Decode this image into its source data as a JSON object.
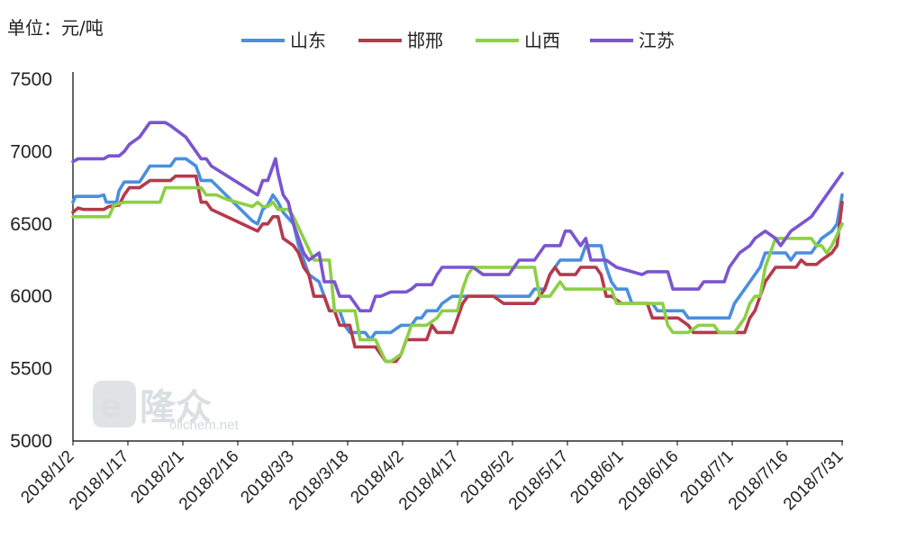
{
  "chart_data": {
    "type": "line",
    "unit_label": "单位：元/吨",
    "ylim": [
      5000,
      7500
    ],
    "yticks": [
      5000,
      5500,
      6000,
      6500,
      7000,
      7500
    ],
    "start_date": "2018-01-02",
    "end_date": "2018-07-31",
    "xticks": [
      "2018/1/2",
      "2018/1/17",
      "2018/2/1",
      "2018/2/16",
      "2018/3/3",
      "2018/3/18",
      "2018/4/2",
      "2018/4/17",
      "2018/5/2",
      "2018/5/17",
      "2018/6/1",
      "2018/6/16",
      "2018/7/1",
      "2018/7/16",
      "2018/7/31"
    ],
    "legend_position": "top",
    "series": [
      {
        "name": "山东",
        "color": "#4a8fde",
        "points": [
          [
            0,
            6650
          ],
          [
            1,
            6690
          ],
          [
            10,
            6690
          ],
          [
            12,
            6700
          ],
          [
            13,
            6650
          ],
          [
            17,
            6650
          ],
          [
            18,
            6730
          ],
          [
            20,
            6790
          ],
          [
            26,
            6790
          ],
          [
            30,
            6900
          ],
          [
            38,
            6900
          ],
          [
            40,
            6950
          ],
          [
            44,
            6950
          ],
          [
            48,
            6900
          ],
          [
            50,
            6800
          ],
          [
            54,
            6800
          ],
          [
            70,
            6520
          ],
          [
            72,
            6500
          ],
          [
            74,
            6600
          ],
          [
            76,
            6630
          ],
          [
            78,
            6700
          ],
          [
            80,
            6650
          ],
          [
            82,
            6580
          ],
          [
            86,
            6500
          ],
          [
            88,
            6350
          ],
          [
            90,
            6250
          ],
          [
            92,
            6150
          ],
          [
            96,
            6100
          ],
          [
            98,
            6000
          ],
          [
            100,
            5900
          ],
          [
            104,
            5900
          ],
          [
            106,
            5800
          ],
          [
            108,
            5750
          ],
          [
            114,
            5750
          ],
          [
            116,
            5700
          ],
          [
            118,
            5750
          ],
          [
            124,
            5750
          ],
          [
            128,
            5800
          ],
          [
            132,
            5800
          ],
          [
            134,
            5850
          ],
          [
            136,
            5850
          ],
          [
            138,
            5900
          ],
          [
            142,
            5900
          ],
          [
            144,
            5950
          ],
          [
            148,
            6000
          ],
          [
            178,
            6000
          ],
          [
            180,
            6050
          ],
          [
            184,
            6050
          ],
          [
            186,
            6150
          ],
          [
            188,
            6200
          ],
          [
            190,
            6250
          ],
          [
            198,
            6250
          ],
          [
            200,
            6350
          ],
          [
            206,
            6350
          ],
          [
            208,
            6200
          ],
          [
            210,
            6100
          ],
          [
            212,
            6050
          ],
          [
            216,
            6050
          ],
          [
            218,
            5950
          ],
          [
            226,
            5950
          ],
          [
            228,
            5900
          ],
          [
            238,
            5900
          ],
          [
            240,
            5850
          ],
          [
            254,
            5850
          ],
          [
            256,
            5850
          ],
          [
            258,
            5950
          ],
          [
            260,
            6000
          ],
          [
            262,
            6050
          ],
          [
            264,
            6100
          ],
          [
            266,
            6150
          ],
          [
            268,
            6200
          ],
          [
            270,
            6300
          ],
          [
            278,
            6300
          ],
          [
            280,
            6250
          ],
          [
            282,
            6300
          ],
          [
            288,
            6300
          ],
          [
            290,
            6350
          ],
          [
            292,
            6400
          ],
          [
            296,
            6450
          ],
          [
            298,
            6500
          ],
          [
            299,
            6600
          ],
          [
            300,
            6700
          ]
        ]
      },
      {
        "name": "邯邢",
        "color": "#b53a4c",
        "points": [
          [
            0,
            6580
          ],
          [
            2,
            6610
          ],
          [
            4,
            6600
          ],
          [
            12,
            6600
          ],
          [
            14,
            6620
          ],
          [
            18,
            6630
          ],
          [
            20,
            6700
          ],
          [
            22,
            6750
          ],
          [
            26,
            6750
          ],
          [
            30,
            6800
          ],
          [
            38,
            6800
          ],
          [
            40,
            6830
          ],
          [
            48,
            6830
          ],
          [
            50,
            6650
          ],
          [
            52,
            6650
          ],
          [
            54,
            6600
          ],
          [
            72,
            6450
          ],
          [
            74,
            6500
          ],
          [
            76,
            6500
          ],
          [
            78,
            6550
          ],
          [
            80,
            6550
          ],
          [
            82,
            6400
          ],
          [
            86,
            6350
          ],
          [
            88,
            6300
          ],
          [
            90,
            6200
          ],
          [
            92,
            6150
          ],
          [
            94,
            6000
          ],
          [
            98,
            6000
          ],
          [
            100,
            5900
          ],
          [
            102,
            5900
          ],
          [
            104,
            5800
          ],
          [
            108,
            5800
          ],
          [
            110,
            5650
          ],
          [
            118,
            5650
          ],
          [
            120,
            5600
          ],
          [
            122,
            5550
          ],
          [
            126,
            5550
          ],
          [
            128,
            5600
          ],
          [
            130,
            5700
          ],
          [
            138,
            5700
          ],
          [
            140,
            5800
          ],
          [
            142,
            5750
          ],
          [
            148,
            5750
          ],
          [
            150,
            5850
          ],
          [
            152,
            5950
          ],
          [
            154,
            6000
          ],
          [
            164,
            6000
          ],
          [
            168,
            5950
          ],
          [
            180,
            5950
          ],
          [
            182,
            6000
          ],
          [
            184,
            6050
          ],
          [
            186,
            6150
          ],
          [
            188,
            6200
          ],
          [
            190,
            6150
          ],
          [
            196,
            6150
          ],
          [
            198,
            6200
          ],
          [
            204,
            6200
          ],
          [
            206,
            6150
          ],
          [
            208,
            6000
          ],
          [
            210,
            6000
          ],
          [
            214,
            5950
          ],
          [
            224,
            5950
          ],
          [
            226,
            5850
          ],
          [
            232,
            5850
          ],
          [
            236,
            5850
          ],
          [
            240,
            5800
          ],
          [
            242,
            5750
          ],
          [
            262,
            5750
          ],
          [
            264,
            5850
          ],
          [
            266,
            5900
          ],
          [
            268,
            6000
          ],
          [
            270,
            6100
          ],
          [
            272,
            6150
          ],
          [
            274,
            6200
          ],
          [
            282,
            6200
          ],
          [
            284,
            6250
          ],
          [
            286,
            6220
          ],
          [
            290,
            6220
          ],
          [
            292,
            6250
          ],
          [
            296,
            6300
          ],
          [
            298,
            6350
          ],
          [
            299,
            6500
          ],
          [
            300,
            6650
          ]
        ]
      },
      {
        "name": "山西",
        "color": "#8cd045",
        "points": [
          [
            0,
            6550
          ],
          [
            14,
            6550
          ],
          [
            16,
            6630
          ],
          [
            20,
            6650
          ],
          [
            34,
            6650
          ],
          [
            36,
            6750
          ],
          [
            50,
            6750
          ],
          [
            52,
            6700
          ],
          [
            56,
            6700
          ],
          [
            60,
            6670
          ],
          [
            70,
            6620
          ],
          [
            72,
            6650
          ],
          [
            74,
            6620
          ],
          [
            76,
            6620
          ],
          [
            78,
            6650
          ],
          [
            80,
            6600
          ],
          [
            84,
            6600
          ],
          [
            86,
            6550
          ],
          [
            94,
            6250
          ],
          [
            100,
            6250
          ],
          [
            102,
            5900
          ],
          [
            110,
            5900
          ],
          [
            112,
            5700
          ],
          [
            118,
            5700
          ],
          [
            122,
            5550
          ],
          [
            124,
            5550
          ],
          [
            128,
            5600
          ],
          [
            132,
            5800
          ],
          [
            138,
            5800
          ],
          [
            142,
            5850
          ],
          [
            144,
            5900
          ],
          [
            150,
            5900
          ],
          [
            152,
            6050
          ],
          [
            154,
            6150
          ],
          [
            156,
            6200
          ],
          [
            164,
            6200
          ],
          [
            166,
            6200
          ],
          [
            180,
            6200
          ],
          [
            182,
            6000
          ],
          [
            186,
            6000
          ],
          [
            188,
            6050
          ],
          [
            190,
            6100
          ],
          [
            192,
            6050
          ],
          [
            210,
            6050
          ],
          [
            212,
            5950
          ],
          [
            230,
            5950
          ],
          [
            232,
            5800
          ],
          [
            234,
            5750
          ],
          [
            240,
            5750
          ],
          [
            244,
            5800
          ],
          [
            250,
            5800
          ],
          [
            252,
            5750
          ],
          [
            258,
            5750
          ],
          [
            262,
            5850
          ],
          [
            264,
            5950
          ],
          [
            266,
            6000
          ],
          [
            268,
            6000
          ],
          [
            270,
            6200
          ],
          [
            272,
            6300
          ],
          [
            274,
            6400
          ],
          [
            288,
            6400
          ],
          [
            290,
            6350
          ],
          [
            292,
            6350
          ],
          [
            294,
            6300
          ],
          [
            296,
            6350
          ],
          [
            300,
            6500
          ]
        ]
      },
      {
        "name": "江苏",
        "color": "#7b55d0",
        "points": [
          [
            0,
            6930
          ],
          [
            2,
            6950
          ],
          [
            12,
            6950
          ],
          [
            14,
            6970
          ],
          [
            18,
            6970
          ],
          [
            20,
            7000
          ],
          [
            22,
            7050
          ],
          [
            26,
            7100
          ],
          [
            30,
            7200
          ],
          [
            36,
            7200
          ],
          [
            38,
            7180
          ],
          [
            44,
            7100
          ],
          [
            48,
            7000
          ],
          [
            50,
            6950
          ],
          [
            52,
            6950
          ],
          [
            54,
            6900
          ],
          [
            72,
            6700
          ],
          [
            74,
            6800
          ],
          [
            76,
            6800
          ],
          [
            78,
            6900
          ],
          [
            79,
            6950
          ],
          [
            80,
            6850
          ],
          [
            82,
            6700
          ],
          [
            84,
            6650
          ],
          [
            86,
            6500
          ],
          [
            90,
            6300
          ],
          [
            92,
            6250
          ],
          [
            96,
            6300
          ],
          [
            98,
            6100
          ],
          [
            102,
            6100
          ],
          [
            104,
            6000
          ],
          [
            108,
            6000
          ],
          [
            110,
            5950
          ],
          [
            112,
            5900
          ],
          [
            116,
            5900
          ],
          [
            118,
            6000
          ],
          [
            120,
            6000
          ],
          [
            124,
            6030
          ],
          [
            130,
            6030
          ],
          [
            132,
            6050
          ],
          [
            134,
            6080
          ],
          [
            140,
            6080
          ],
          [
            142,
            6150
          ],
          [
            144,
            6200
          ],
          [
            152,
            6200
          ],
          [
            156,
            6200
          ],
          [
            160,
            6150
          ],
          [
            170,
            6150
          ],
          [
            172,
            6200
          ],
          [
            174,
            6250
          ],
          [
            180,
            6250
          ],
          [
            182,
            6300
          ],
          [
            184,
            6350
          ],
          [
            190,
            6350
          ],
          [
            192,
            6450
          ],
          [
            194,
            6450
          ],
          [
            196,
            6400
          ],
          [
            198,
            6350
          ],
          [
            200,
            6400
          ],
          [
            202,
            6250
          ],
          [
            208,
            6250
          ],
          [
            212,
            6200
          ],
          [
            222,
            6150
          ],
          [
            224,
            6170
          ],
          [
            232,
            6170
          ],
          [
            234,
            6050
          ],
          [
            244,
            6050
          ],
          [
            246,
            6100
          ],
          [
            254,
            6100
          ],
          [
            256,
            6200
          ],
          [
            258,
            6250
          ],
          [
            260,
            6300
          ],
          [
            264,
            6350
          ],
          [
            266,
            6400
          ],
          [
            270,
            6450
          ],
          [
            274,
            6400
          ],
          [
            276,
            6350
          ],
          [
            280,
            6450
          ],
          [
            284,
            6500
          ],
          [
            288,
            6550
          ],
          [
            292,
            6650
          ],
          [
            296,
            6750
          ],
          [
            300,
            6850
          ]
        ]
      }
    ]
  },
  "watermark": {
    "logo_text": "隆众",
    "site": "oilchem.net"
  }
}
